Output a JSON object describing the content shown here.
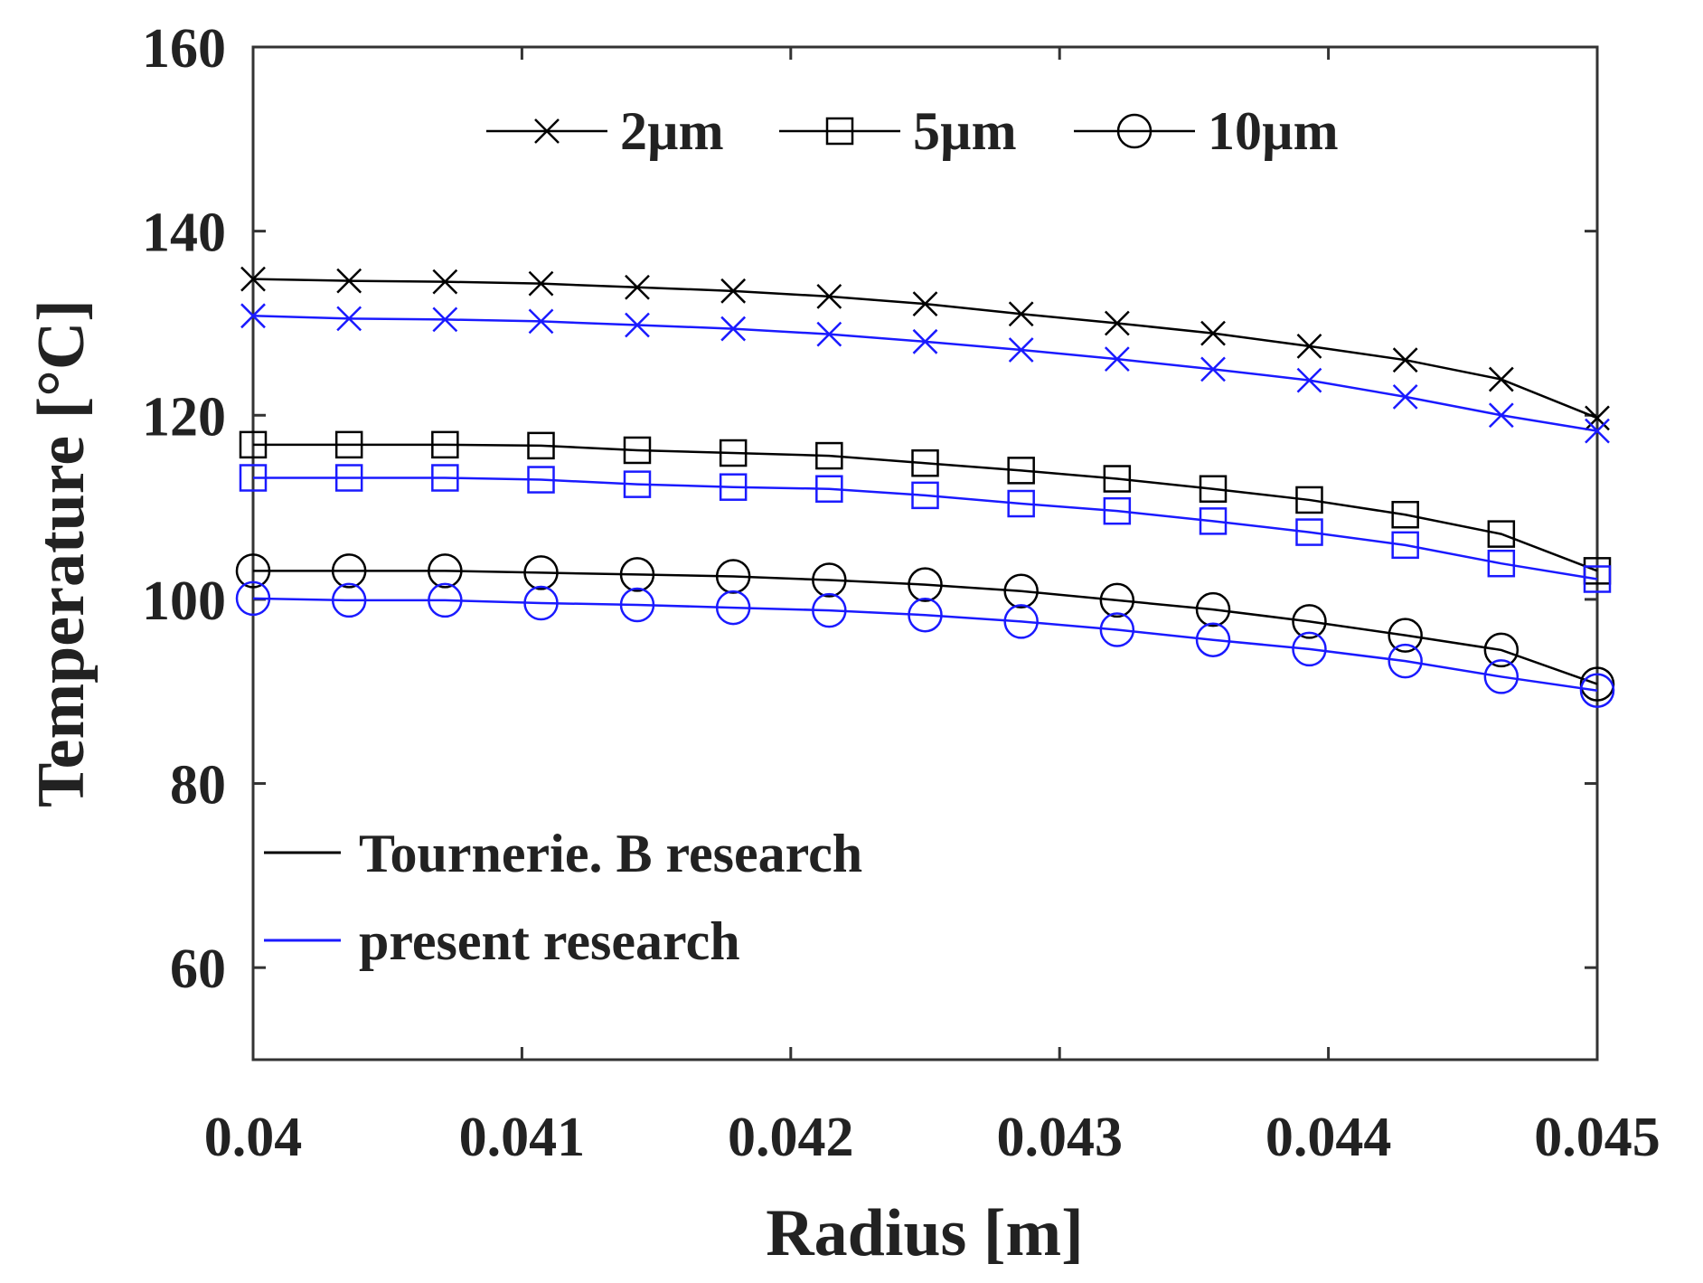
{
  "chart_data": {
    "type": "line",
    "title": "",
    "xlabel": "Radius [m]",
    "ylabel": "Temperature [°C]",
    "xlim": [
      0.04,
      0.045
    ],
    "ylim": [
      50,
      160
    ],
    "xticks": [
      0.04,
      0.041,
      0.042,
      0.043,
      0.044,
      0.045
    ],
    "xtick_labels": [
      "0.04",
      "0.041",
      "0.042",
      "0.043",
      "0.044",
      "0.045"
    ],
    "yticks": [
      60,
      80,
      100,
      120,
      140,
      160
    ],
    "ytick_labels": [
      "60",
      "80",
      "100",
      "120",
      "140",
      "160"
    ],
    "grid": false,
    "x": [
      0.04,
      0.040357,
      0.040714,
      0.041071,
      0.041429,
      0.041786,
      0.042143,
      0.0425,
      0.042857,
      0.043214,
      0.043571,
      0.043929,
      0.044286,
      0.044643,
      0.045
    ],
    "series": [
      {
        "name": "Tournerie. B research 2µm",
        "color": "#000000",
        "marker": "x",
        "values": [
          134.8,
          134.6,
          134.5,
          134.3,
          133.9,
          133.5,
          132.9,
          132.1,
          131.0,
          130.0,
          128.9,
          127.5,
          126.0,
          123.9,
          119.7
        ]
      },
      {
        "name": "present research 2µm",
        "color": "#1a1aff",
        "marker": "x",
        "values": [
          130.8,
          130.5,
          130.4,
          130.2,
          129.8,
          129.4,
          128.8,
          128.0,
          127.1,
          126.1,
          125.0,
          123.8,
          122.0,
          120.0,
          118.3
        ]
      },
      {
        "name": "Tournerie. B research 5µm",
        "color": "#000000",
        "marker": "square",
        "values": [
          116.8,
          116.8,
          116.8,
          116.7,
          116.2,
          115.9,
          115.6,
          114.8,
          114.0,
          113.1,
          112.0,
          110.8,
          109.2,
          107.1,
          103.1
        ]
      },
      {
        "name": "present research 5µm",
        "color": "#1a1aff",
        "marker": "square",
        "values": [
          113.2,
          113.2,
          113.2,
          113.0,
          112.5,
          112.2,
          112.0,
          111.3,
          110.4,
          109.6,
          108.5,
          107.3,
          105.9,
          103.9,
          102.2
        ]
      },
      {
        "name": "Tournerie. B research 10µm",
        "color": "#000000",
        "marker": "circle",
        "values": [
          103.1,
          103.1,
          103.1,
          102.9,
          102.7,
          102.5,
          102.1,
          101.6,
          100.9,
          99.9,
          98.9,
          97.6,
          96.1,
          94.5,
          90.8
        ]
      },
      {
        "name": "present research 10µm",
        "color": "#1a1aff",
        "marker": "circle",
        "values": [
          100.1,
          99.9,
          99.9,
          99.6,
          99.4,
          99.1,
          98.8,
          98.3,
          97.6,
          96.7,
          95.6,
          94.6,
          93.3,
          91.6,
          90.1
        ]
      }
    ],
    "legend_markers": {
      "placement": "top",
      "entries": [
        {
          "label": "2µm",
          "marker": "x"
        },
        {
          "label": "5µm",
          "marker": "square"
        },
        {
          "label": "10µm",
          "marker": "circle"
        }
      ]
    },
    "legend_sources": {
      "placement": "bottom-left",
      "entries": [
        {
          "label": "Tournerie. B research",
          "color": "#000000"
        },
        {
          "label": "present research",
          "color": "#1a1aff"
        }
      ]
    }
  }
}
